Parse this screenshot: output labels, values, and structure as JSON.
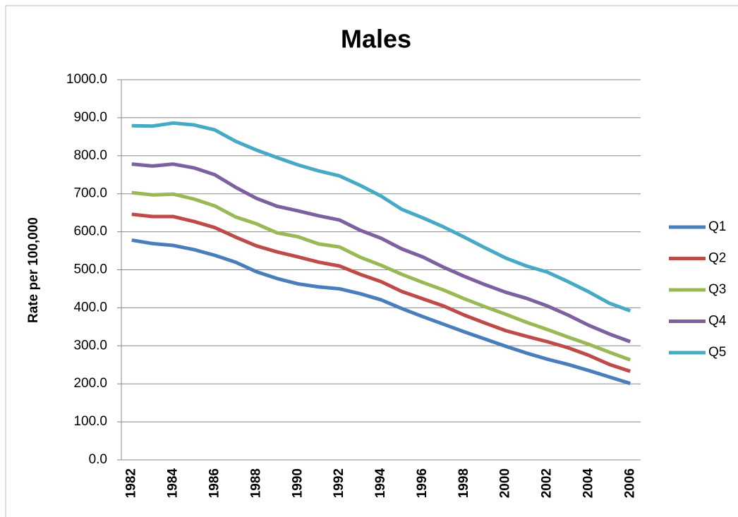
{
  "chart_data": {
    "type": "line",
    "title": "Males",
    "y_label": "Rate per 100,000",
    "categories": [
      "1982",
      null,
      "1984",
      null,
      "1986",
      null,
      "1988",
      null,
      "1990",
      null,
      "1992",
      null,
      "1994",
      null,
      "1996",
      null,
      "1998",
      null,
      "2000",
      null,
      "2002",
      null,
      "2004",
      null,
      "2006"
    ],
    "series": [
      {
        "name": "Q1",
        "color": "#4a7ebb",
        "values": [
          578,
          569,
          564,
          553,
          538,
          520,
          495,
          477,
          463,
          455,
          450,
          437,
          421,
          398,
          377,
          357,
          337,
          318,
          299,
          281,
          265,
          251,
          235,
          218,
          201
        ]
      },
      {
        "name": "Q2",
        "color": "#be4b48",
        "values": [
          646,
          640,
          640,
          627,
          611,
          586,
          563,
          547,
          534,
          520,
          510,
          488,
          469,
          443,
          424,
          405,
          381,
          360,
          340,
          325,
          311,
          295,
          275,
          251,
          233
        ]
      },
      {
        "name": "Q3",
        "color": "#98b954",
        "values": [
          703,
          697,
          699,
          686,
          668,
          639,
          621,
          597,
          587,
          568,
          560,
          533,
          512,
          488,
          467,
          447,
          424,
          403,
          383,
          362,
          343,
          323,
          304,
          283,
          263
        ]
      },
      {
        "name": "Q4",
        "color": "#7d60a0",
        "values": [
          778,
          773,
          778,
          768,
          750,
          717,
          688,
          667,
          655,
          642,
          631,
          604,
          583,
          555,
          534,
          507,
          483,
          461,
          441,
          425,
          405,
          381,
          354,
          331,
          311
        ]
      },
      {
        "name": "Q5",
        "color": "#46aac5",
        "values": [
          879,
          878,
          886,
          881,
          868,
          838,
          815,
          795,
          776,
          760,
          747,
          722,
          694,
          659,
          637,
          613,
          586,
          558,
          531,
          510,
          494,
          469,
          442,
          412,
          392
        ]
      }
    ],
    "ylim": [
      0,
      1000
    ],
    "yticks": [
      {
        "value": 0,
        "label": "0.0"
      },
      {
        "value": 100,
        "label": "100.0"
      },
      {
        "value": 200,
        "label": "200.0"
      },
      {
        "value": 300,
        "label": "300.0"
      },
      {
        "value": 400,
        "label": "400.0"
      },
      {
        "value": 500,
        "label": "500.0"
      },
      {
        "value": 600,
        "label": "600.0"
      },
      {
        "value": 700,
        "label": "700.0"
      },
      {
        "value": 800,
        "label": "800.0"
      },
      {
        "value": 900,
        "label": "900.0"
      },
      {
        "value": 1000,
        "label": "1000.0"
      }
    ],
    "grid": true,
    "legend": "right"
  }
}
